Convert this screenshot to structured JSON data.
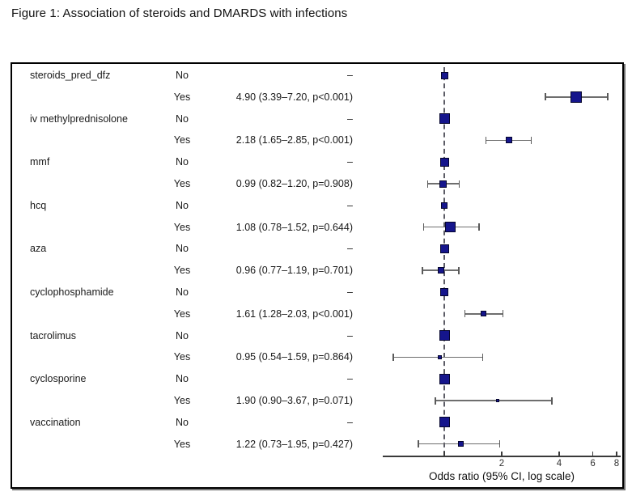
{
  "figure": {
    "title": "Figure 1: Association of steroids and DMARDS with infections",
    "xlabel": "Odds ratio (95% CI, log scale)"
  },
  "colors": {
    "marker_fill": "#15158c",
    "marker_border": "#05052d",
    "ci_line": "#6e6e6e",
    "reference_line": "#5c5c66",
    "axis": "#3a3a3a",
    "text": "#1a1a1a"
  },
  "chart_data": {
    "type": "scatter",
    "subtype": "forest-plot",
    "title": "Figure 1: Association of steroids and DMARDS with infections",
    "xlabel": "Odds ratio (95% CI, log scale)",
    "x_scale": "log",
    "x_range": [
      0.45,
      8.4
    ],
    "reference_value": 1.0,
    "grid": false,
    "axis_ticks": [
      {
        "value": 1,
        "label": ""
      },
      {
        "value": 2,
        "label": "2"
      },
      {
        "value": 4,
        "label": "4"
      },
      {
        "value": 6,
        "label": "6"
      },
      {
        "value": 8,
        "label": "8"
      }
    ],
    "columns": [
      "variable",
      "level",
      "estimate"
    ],
    "rows": [
      {
        "variable": "steroids_pred_dfz",
        "level": "No",
        "estimate_text": "–",
        "or": 1.0,
        "marker_size": 9
      },
      {
        "variable": "",
        "level": "Yes",
        "estimate_text": "4.90 (3.39–7.20, p<0.001)",
        "or": 4.9,
        "ci_low": 3.39,
        "ci_high": 7.2,
        "p": "<0.001",
        "marker_size": 14
      },
      {
        "variable": "iv methylprednisolone",
        "level": "No",
        "estimate_text": "–",
        "or": 1.0,
        "marker_size": 13
      },
      {
        "variable": "",
        "level": "Yes",
        "estimate_text": "2.18 (1.65–2.85, p<0.001)",
        "or": 2.18,
        "ci_low": 1.65,
        "ci_high": 2.85,
        "p": "<0.001",
        "marker_size": 8
      },
      {
        "variable": "mmf",
        "level": "No",
        "estimate_text": "–",
        "or": 1.0,
        "marker_size": 11
      },
      {
        "variable": "",
        "level": "Yes",
        "estimate_text": "0.99 (0.82–1.20, p=0.908)",
        "or": 0.99,
        "ci_low": 0.82,
        "ci_high": 1.2,
        "p": "=0.908",
        "marker_size": 9
      },
      {
        "variable": "hcq",
        "level": "No",
        "estimate_text": "–",
        "or": 1.0,
        "marker_size": 8
      },
      {
        "variable": "",
        "level": "Yes",
        "estimate_text": "1.08 (0.78–1.52, p=0.644)",
        "or": 1.08,
        "ci_low": 0.78,
        "ci_high": 1.52,
        "p": "=0.644",
        "marker_size": 13
      },
      {
        "variable": "aza",
        "level": "No",
        "estimate_text": "–",
        "or": 1.0,
        "marker_size": 11
      },
      {
        "variable": "",
        "level": "Yes",
        "estimate_text": "0.96 (0.77–1.19, p=0.701)",
        "or": 0.96,
        "ci_low": 0.77,
        "ci_high": 1.19,
        "p": "=0.701",
        "marker_size": 8
      },
      {
        "variable": "cyclophosphamide",
        "level": "No",
        "estimate_text": "–",
        "or": 1.0,
        "marker_size": 10
      },
      {
        "variable": "",
        "level": "Yes",
        "estimate_text": "1.61 (1.28–2.03, p<0.001)",
        "or": 1.61,
        "ci_low": 1.28,
        "ci_high": 2.03,
        "p": "<0.001",
        "marker_size": 7
      },
      {
        "variable": "tacrolimus",
        "level": "No",
        "estimate_text": "–",
        "or": 1.0,
        "marker_size": 13
      },
      {
        "variable": "",
        "level": "Yes",
        "estimate_text": "0.95 (0.54–1.59, p=0.864)",
        "or": 0.95,
        "ci_low": 0.54,
        "ci_high": 1.59,
        "p": "=0.864",
        "marker_size": 5
      },
      {
        "variable": "cyclosporine",
        "level": "No",
        "estimate_text": "–",
        "or": 1.0,
        "marker_size": 13
      },
      {
        "variable": "",
        "level": "Yes",
        "estimate_text": "1.90 (0.90–3.67, p=0.071)",
        "or": 1.9,
        "ci_low": 0.9,
        "ci_high": 3.67,
        "p": "=0.071",
        "marker_size": 4
      },
      {
        "variable": "vaccination",
        "level": "No",
        "estimate_text": "–",
        "or": 1.0,
        "marker_size": 13
      },
      {
        "variable": "",
        "level": "Yes",
        "estimate_text": "1.22 (0.73–1.95, p=0.427)",
        "or": 1.22,
        "ci_low": 0.73,
        "ci_high": 1.95,
        "p": "=0.427",
        "marker_size": 7
      }
    ]
  }
}
